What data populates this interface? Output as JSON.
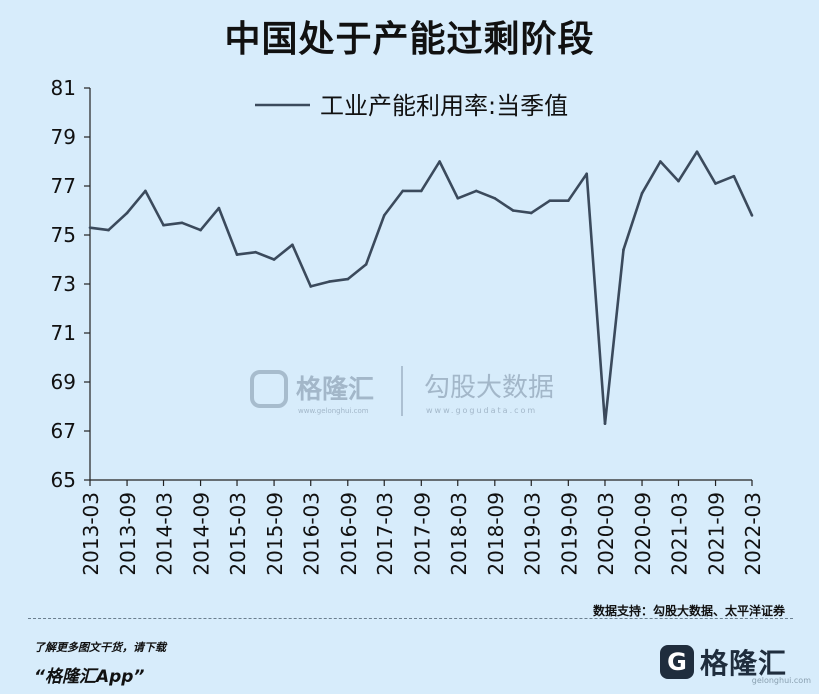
{
  "chart_data": {
    "type": "line",
    "title": "中国处于产能过剩阶段",
    "legend": "工业产能利用率:当季值",
    "legend_position": "top",
    "grid": false,
    "ylim": [
      65,
      81
    ],
    "yticks": [
      65,
      67,
      69,
      71,
      73,
      75,
      77,
      79,
      81
    ],
    "xticks": [
      "2013-03",
      "2013-09",
      "2014-03",
      "2014-09",
      "2015-03",
      "2015-09",
      "2016-03",
      "2016-09",
      "2017-03",
      "2017-09",
      "2018-03",
      "2018-09",
      "2019-03",
      "2019-09",
      "2020-03",
      "2020-09",
      "2021-03",
      "2021-09",
      "2022-03"
    ],
    "series": [
      {
        "name": "工业产能利用率:当季值",
        "color": "#3b4a5c",
        "x": [
          "2013-03",
          "2013-06",
          "2013-09",
          "2013-12",
          "2014-03",
          "2014-06",
          "2014-09",
          "2014-12",
          "2015-03",
          "2015-06",
          "2015-09",
          "2015-12",
          "2016-03",
          "2016-06",
          "2016-09",
          "2016-12",
          "2017-03",
          "2017-06",
          "2017-09",
          "2017-12",
          "2018-03",
          "2018-06",
          "2018-09",
          "2018-12",
          "2019-03",
          "2019-06",
          "2019-09",
          "2019-12",
          "2020-03",
          "2020-06",
          "2020-09",
          "2020-12",
          "2021-03",
          "2021-06",
          "2021-09",
          "2021-12",
          "2022-03"
        ],
        "values": [
          75.3,
          75.2,
          75.9,
          76.8,
          75.4,
          75.5,
          75.2,
          76.1,
          74.2,
          74.3,
          74.0,
          74.6,
          72.9,
          73.1,
          73.2,
          73.8,
          75.8,
          76.8,
          76.8,
          78.0,
          76.5,
          76.8,
          76.5,
          76.0,
          75.9,
          76.4,
          76.4,
          77.5,
          67.3,
          74.4,
          76.7,
          78.0,
          77.2,
          78.4,
          77.1,
          77.4,
          75.8
        ]
      }
    ]
  },
  "watermark": {
    "brand1": "格隆汇",
    "brand1_url": "www.gelonghui.com",
    "brand2": "勾股大数据",
    "brand2_url": "www.gogudata.com"
  },
  "footer": {
    "source": "数据支持：勾股大数据、太平洋证券",
    "promo": "了解更多图文干货，请下载",
    "app": "“格隆汇App”",
    "brand_mark": "G",
    "brand_name": "格隆汇",
    "brand_url": "gelonghui.com"
  }
}
